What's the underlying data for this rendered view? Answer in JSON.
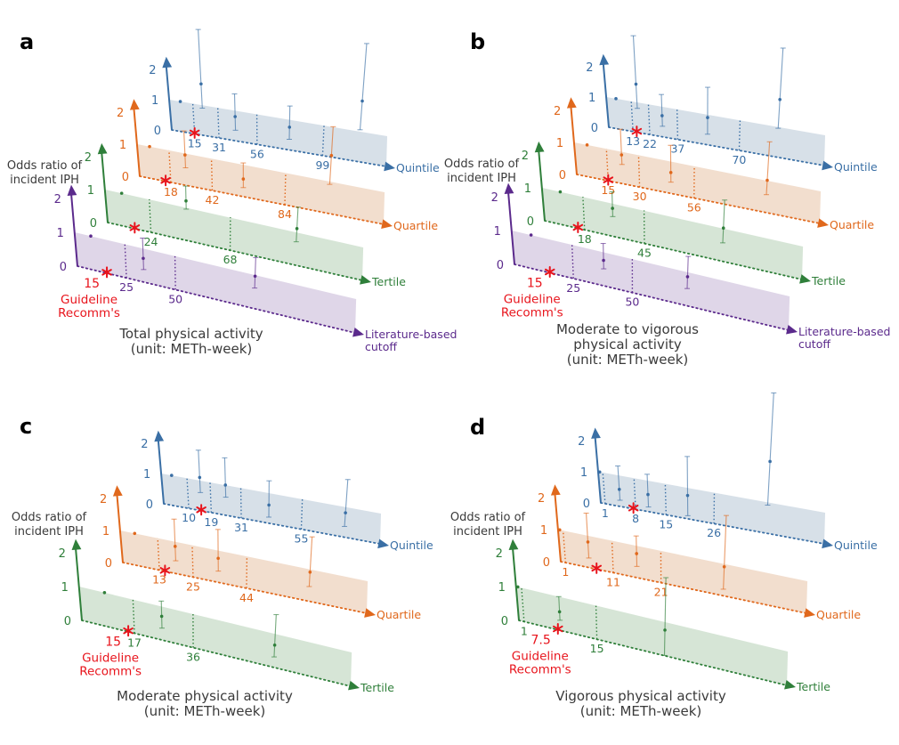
{
  "chart_data": [
    {
      "panel": "a",
      "type": "scatter",
      "ylabel_lines": [
        "Odds ratio of",
        "incident IPH"
      ],
      "xlabel_lines": [
        "Total physical activity",
        "(unit: METh-week)"
      ],
      "xlim": [
        0,
        140
      ],
      "ylim": [
        0,
        2
      ],
      "yticks": [
        "0",
        "1",
        "2"
      ],
      "guideline": {
        "value": 15,
        "label": "15",
        "text_lines": [
          "Guideline",
          "Recomm's"
        ]
      },
      "layers": [
        {
          "name_lines": [
            "Quintile"
          ],
          "color": "#3a6fa5",
          "fill": "#d5dee7",
          "cutoffs": [
            15,
            31,
            56,
            99
          ],
          "groups": [
            {
              "x": 7,
              "or": 1
            },
            {
              "x": 21,
              "or": 1.7,
              "lo": 0.9,
              "hi": 3.5
            },
            {
              "x": 42,
              "or": 0.8,
              "lo": 0.35,
              "hi": 1.55
            },
            {
              "x": 77,
              "or": 0.75,
              "lo": 0.35,
              "hi": 1.45
            },
            {
              "x": 122,
              "or": 2.0,
              "lo": 1.05,
              "hi": 3.9
            }
          ]
        },
        {
          "name_lines": [
            "Quartile"
          ],
          "color": "#e0681c",
          "fill": "#f1dccb",
          "cutoffs": [
            18,
            42,
            84
          ],
          "groups": [
            {
              "x": 7,
              "or": 1
            },
            {
              "x": 27,
              "or": 0.95,
              "lo": 0.55,
              "hi": 1.7
            },
            {
              "x": 60,
              "or": 0.55,
              "lo": 0.28,
              "hi": 1.05
            },
            {
              "x": 109,
              "or": 1.8,
              "lo": 0.9,
              "hi": 2.7
            }
          ]
        },
        {
          "name_lines": [
            "Tertile"
          ],
          "color": "#2f7f3a",
          "fill": "#d4e4d4",
          "cutoffs": [
            24,
            68
          ],
          "groups": [
            {
              "x": 9,
              "or": 1
            },
            {
              "x": 44,
              "or": 1.2,
              "lo": 0.95,
              "hi": 1.65
            },
            {
              "x": 104,
              "or": 1.1,
              "lo": 0.7,
              "hi": 1.75
            }
          ]
        },
        {
          "name_lines": [
            "Literature-based",
            "cutoff"
          ],
          "color": "#5b2a8c",
          "fill": "#ddd4e7",
          "cutoffs": [
            25,
            50
          ],
          "groups": [
            {
              "x": 8,
              "or": 1
            },
            {
              "x": 34,
              "or": 0.7,
              "lo": 0.37,
              "hi": 1.3
            },
            {
              "x": 90,
              "or": 0.95,
              "lo": 0.6,
              "hi": 1.5
            }
          ]
        }
      ]
    },
    {
      "panel": "b",
      "type": "scatter",
      "ylabel_lines": [
        "Odds ratio of",
        "incident IPH"
      ],
      "xlabel_lines": [
        "Moderate to vigorous",
        "physical activity",
        "(unit: METh-week)"
      ],
      "xlim": [
        0,
        115
      ],
      "ylim": [
        0,
        2
      ],
      "yticks": [
        "0",
        "1",
        "2"
      ],
      "guideline": {
        "value": 15,
        "label": "15",
        "text_lines": [
          "Guideline",
          "Recomm's"
        ]
      },
      "layers": [
        {
          "name_lines": [
            "Quintile"
          ],
          "color": "#3a6fa5",
          "fill": "#d5dee7",
          "cutoffs": [
            13,
            22,
            37,
            70
          ],
          "groups": [
            {
              "x": 5,
              "or": 1
            },
            {
              "x": 16,
              "or": 1.6,
              "lo": 0.8,
              "hi": 3.2
            },
            {
              "x": 29,
              "or": 0.7,
              "lo": 0.35,
              "hi": 1.4
            },
            {
              "x": 53,
              "or": 0.9,
              "lo": 0.35,
              "hi": 1.9
            },
            {
              "x": 90,
              "or": 1.9,
              "lo": 0.95,
              "hi": 3.6
            }
          ]
        },
        {
          "name_lines": [
            "Quartile"
          ],
          "color": "#e0681c",
          "fill": "#f1dccb",
          "cutoffs": [
            15,
            30,
            56
          ],
          "groups": [
            {
              "x": 6,
              "or": 1
            },
            {
              "x": 22,
              "or": 0.9,
              "lo": 0.6,
              "hi": 1.7
            },
            {
              "x": 45,
              "or": 0.65,
              "lo": 0.35,
              "hi": 1.5
            },
            {
              "x": 90,
              "or": 1.0,
              "lo": 0.55,
              "hi": 2.2
            }
          ]
        },
        {
          "name_lines": [
            "Tertile"
          ],
          "color": "#2f7f3a",
          "fill": "#d4e4d4",
          "cutoffs": [
            18,
            45
          ],
          "groups": [
            {
              "x": 8,
              "or": 1
            },
            {
              "x": 31,
              "or": 0.85,
              "lo": 0.6,
              "hi": 1.35
            },
            {
              "x": 80,
              "or": 1.0,
              "lo": 0.55,
              "hi": 1.85
            }
          ]
        },
        {
          "name_lines": [
            "Literature-based",
            "cutoff"
          ],
          "color": "#5b2a8c",
          "fill": "#ddd4e7",
          "cutoffs": [
            25,
            50
          ],
          "groups": [
            {
              "x": 8,
              "or": 1
            },
            {
              "x": 38,
              "or": 0.75,
              "lo": 0.5,
              "hi": 1.25
            },
            {
              "x": 73,
              "or": 0.85,
              "lo": 0.5,
              "hi": 1.45
            }
          ]
        }
      ]
    },
    {
      "panel": "c",
      "type": "scatter",
      "ylabel_lines": [
        "Odds ratio of",
        "incident IPH"
      ],
      "xlabel_lines": [
        "Moderate physical activity",
        "(unit: METh-week)"
      ],
      "xlim": [
        0,
        86
      ],
      "ylim": [
        0,
        2
      ],
      "yticks": [
        "0",
        "1",
        "2"
      ],
      "guideline": {
        "value": 15,
        "label": "15",
        "text_lines": [
          "Guideline",
          "Recomm's"
        ]
      },
      "layers": [
        {
          "name_lines": [
            "Quintile"
          ],
          "color": "#3a6fa5",
          "fill": "#d5dee7",
          "cutoffs": [
            10,
            19,
            31,
            55
          ],
          "groups": [
            {
              "x": 4,
              "or": 1
            },
            {
              "x": 15,
              "or": 1.1,
              "lo": 0.6,
              "hi": 2.0
            },
            {
              "x": 25,
              "or": 1.0,
              "lo": 0.6,
              "hi": 1.9
            },
            {
              "x": 42,
              "or": 0.6,
              "lo": 0.2,
              "hi": 1.4
            },
            {
              "x": 72,
              "or": 0.8,
              "lo": 0.35,
              "hi": 1.9
            }
          ]
        },
        {
          "name_lines": [
            "Quartile"
          ],
          "color": "#e0681c",
          "fill": "#f1dccb",
          "cutoffs": [
            13,
            25,
            44
          ],
          "groups": [
            {
              "x": 5,
              "or": 1
            },
            {
              "x": 19,
              "or": 0.85,
              "lo": 0.4,
              "hi": 1.7
            },
            {
              "x": 34,
              "or": 0.75,
              "lo": 0.35,
              "hi": 1.65
            },
            {
              "x": 66,
              "or": 0.9,
              "lo": 0.45,
              "hi": 2.0
            }
          ]
        },
        {
          "name_lines": [
            "Tertile"
          ],
          "color": "#2f7f3a",
          "fill": "#d4e4d4",
          "cutoffs": [
            17,
            36
          ],
          "groups": [
            {
              "x": 8,
              "or": 1
            },
            {
              "x": 26,
              "or": 0.7,
              "lo": 0.35,
              "hi": 1.15
            },
            {
              "x": 62,
              "or": 0.65,
              "lo": 0.3,
              "hi": 1.55
            }
          ]
        }
      ]
    },
    {
      "panel": "d",
      "type": "scatter",
      "ylabel_lines": [
        "Odds ratio of",
        "incident IPH"
      ],
      "xlabel_lines": [
        "Vigorous physical activity",
        "(unit: METh-week)"
      ],
      "xlim": [
        0,
        51
      ],
      "ylim": [
        0,
        2
      ],
      "yticks": [
        "0",
        "1",
        "2"
      ],
      "guideline": {
        "value": 7.5,
        "label": "7.5",
        "text_lines": [
          "Guideline",
          "Recomm's"
        ]
      },
      "layers": [
        {
          "name_lines": [
            "Quintile"
          ],
          "color": "#3a6fa5",
          "fill": "#d5dee7",
          "cutoffs": [
            1,
            8,
            15,
            26
          ],
          "groups": [
            {
              "x": 0.3,
              "or": 1
            },
            {
              "x": 4.5,
              "or": 0.55,
              "lo": 0.2,
              "hi": 1.3
            },
            {
              "x": 11,
              "or": 0.55,
              "lo": 0.15,
              "hi": 1.2
            },
            {
              "x": 20,
              "or": 0.75,
              "lo": 0.1,
              "hi": 2.0
            },
            {
              "x": 38,
              "or": 2.3,
              "lo": 0.9,
              "hi": 4.5
            }
          ]
        },
        {
          "name_lines": [
            "Quartile"
          ],
          "color": "#e0681c",
          "fill": "#f1dccb",
          "cutoffs": [
            1,
            11,
            21
          ],
          "groups": [
            {
              "x": 0.3,
              "or": 1
            },
            {
              "x": 6,
              "or": 0.8,
              "lo": 0.3,
              "hi": 1.7
            },
            {
              "x": 16,
              "or": 0.75,
              "lo": 0.35,
              "hi": 1.3
            },
            {
              "x": 34,
              "or": 0.9,
              "lo": 0.2,
              "hi": 2.5
            }
          ]
        },
        {
          "name_lines": [
            "Tertile"
          ],
          "color": "#2f7f3a",
          "fill": "#d4e4d4",
          "cutoffs": [
            1,
            15
          ],
          "groups": [
            {
              "x": 0.3,
              "or": 1
            },
            {
              "x": 8,
              "or": 0.55,
              "lo": 0.3,
              "hi": 1.0
            },
            {
              "x": 28,
              "or": 0.75,
              "lo": 0.0,
              "hi": 2.3
            }
          ]
        }
      ]
    }
  ],
  "colors": {
    "guideline": "#e8141c",
    "text": "#3a3a3a"
  }
}
